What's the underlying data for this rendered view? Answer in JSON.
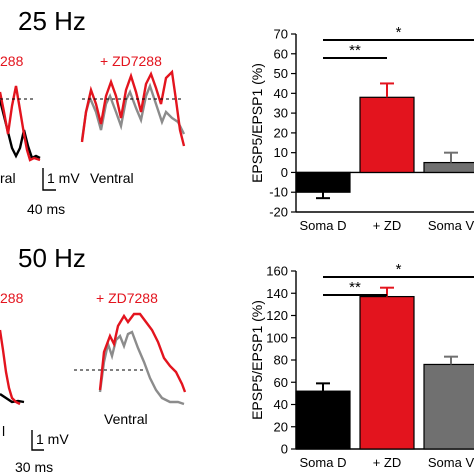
{
  "colors": {
    "red": "#e3141e",
    "gray": "#8c8c8c",
    "dark_gray": "#707070",
    "black": "#000000"
  },
  "panels": [
    {
      "title": "25 Hz",
      "drug_label_left": "288",
      "drug_label_right": "+ ZD7288",
      "trace_label_left": "ral",
      "trace_label_right": "Ventral",
      "scale_v": "1 mV",
      "scale_t": "40 ms"
    },
    {
      "title": "50 Hz",
      "drug_label_left": "288",
      "drug_label_right": "+ ZD7288",
      "trace_label_left": "l",
      "trace_label_right": "Ventral",
      "scale_v": "1 mV",
      "scale_t": "30 ms"
    }
  ],
  "chart_data": [
    {
      "type": "bar",
      "title": "",
      "xlabel": "",
      "ylabel": "EPSP5/EPSP1 (%)",
      "categories": [
        "Soma D",
        "+ ZD",
        "Soma V"
      ],
      "values": [
        -10,
        38,
        5
      ],
      "errors": [
        3,
        7,
        5
      ],
      "bar_colors": [
        "#000000",
        "#e3141e",
        "#707070"
      ],
      "ylim": [
        -20,
        70
      ],
      "yticks": [
        -20,
        -10,
        0,
        10,
        20,
        30,
        40,
        50,
        60,
        70
      ],
      "significance": [
        {
          "label": "**",
          "from": 0,
          "to": 1
        },
        {
          "label": "*",
          "from": 0,
          "to": 2
        }
      ]
    },
    {
      "type": "bar",
      "title": "",
      "xlabel": "",
      "ylabel": "EPSP5/EPSP1 (%)",
      "categories": [
        "Soma D",
        "+ ZD",
        "Soma V"
      ],
      "values": [
        52,
        137,
        76
      ],
      "errors": [
        7,
        8,
        7
      ],
      "bar_colors": [
        "#000000",
        "#e3141e",
        "#707070"
      ],
      "ylim": [
        0,
        160
      ],
      "yticks": [
        0,
        20,
        40,
        60,
        80,
        100,
        120,
        140,
        160
      ],
      "significance": [
        {
          "label": "**",
          "from": 0,
          "to": 1
        },
        {
          "label": "*",
          "from": 0,
          "to": 2
        }
      ]
    }
  ]
}
